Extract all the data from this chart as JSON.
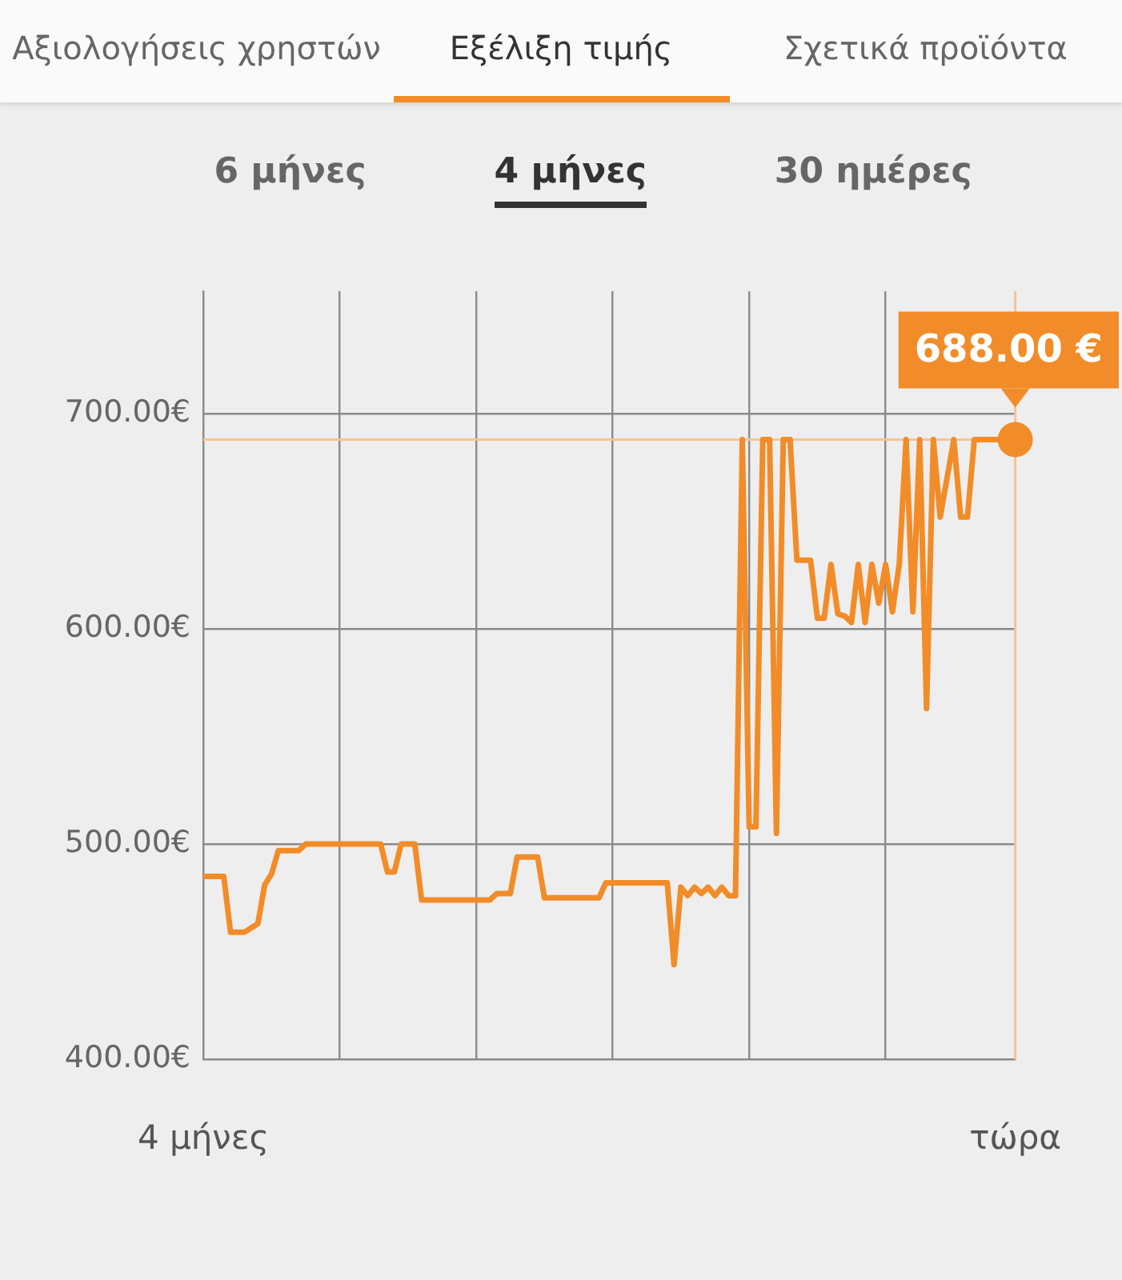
{
  "chart_data": {
    "type": "line",
    "annotations": [
      "Αξιολογήσεις χρηστών",
      "Εξέλιξη τιμής",
      "Σχετικά προϊόντα",
      "6 μήνες",
      "4 μήνες",
      "30 ημέρες",
      {
        "text": "688.00 €",
        "x": "τώρα",
        "y": 688
      }
    ],
    "categories": [
      "4 μήνες",
      null,
      null,
      null,
      null,
      null,
      null,
      null,
      null,
      null,
      null,
      null,
      null,
      null,
      null,
      null,
      null,
      null,
      null,
      null,
      null,
      null,
      null,
      null,
      null,
      null,
      null,
      null,
      null,
      null,
      null,
      null,
      null,
      null,
      null,
      null,
      null,
      null,
      null,
      null,
      null,
      null,
      null,
      null,
      null,
      null,
      null,
      null,
      null,
      null,
      null,
      null,
      null,
      null,
      null,
      null,
      null,
      null,
      null,
      null,
      null,
      null,
      null,
      null,
      null,
      null,
      null,
      null,
      null,
      null,
      null,
      null,
      null,
      null,
      null,
      null,
      null,
      null,
      null,
      null,
      null,
      null,
      null,
      null,
      null,
      null,
      null,
      null,
      null,
      null,
      null,
      null,
      null,
      null,
      null,
      null,
      null,
      null,
      null,
      null,
      null,
      null,
      null,
      null,
      null,
      null,
      null,
      null,
      null,
      null,
      null,
      null,
      null,
      null,
      null,
      null,
      null,
      null,
      null,
      "τώρα"
    ],
    "series": [
      {
        "color": "#f28c28",
        "values": [
          485,
          485,
          485,
          485,
          459,
          459,
          459,
          461,
          463,
          481,
          486,
          497,
          497,
          497,
          497,
          500,
          500,
          500,
          500,
          500,
          500,
          500,
          500,
          500,
          500,
          500,
          500,
          487,
          487,
          500,
          500,
          500,
          474,
          474,
          474,
          474,
          474,
          474,
          474,
          474,
          474,
          474,
          474,
          477,
          477,
          477,
          494,
          494,
          494,
          494,
          475,
          475,
          475,
          475,
          475,
          475,
          475,
          475,
          475,
          482,
          482,
          482,
          482,
          482,
          482,
          482,
          482,
          482,
          482,
          444,
          480,
          476,
          480,
          477,
          480,
          476,
          480,
          476,
          476,
          688,
          508,
          508,
          688,
          688,
          505,
          688,
          688,
          632,
          632,
          632,
          605,
          605,
          630,
          607,
          606,
          603,
          630,
          603,
          630,
          612,
          630,
          608,
          630,
          688,
          608,
          688,
          563,
          688,
          652,
          670,
          688,
          652,
          652,
          688,
          688,
          688,
          688,
          688,
          688,
          688
        ]
      }
    ],
    "ylim": [
      400,
      757
    ],
    "yticks": [
      {
        "value": 400,
        "label": "400.00€"
      },
      {
        "value": 500,
        "label": "500.00€"
      },
      {
        "value": 600,
        "label": "600.00€"
      },
      {
        "value": 700,
        "label": "700.00€"
      }
    ],
    "ref_lines": [
      {
        "axis": "y",
        "value": 688,
        "label": null,
        "color": "#f7c48f"
      },
      {
        "axis": "x",
        "value": "τώρα",
        "label": null,
        "color": "#f7c48f"
      }
    ],
    "grid": true,
    "marker": "none",
    "line_style": "solid",
    "legend": false
  }
}
